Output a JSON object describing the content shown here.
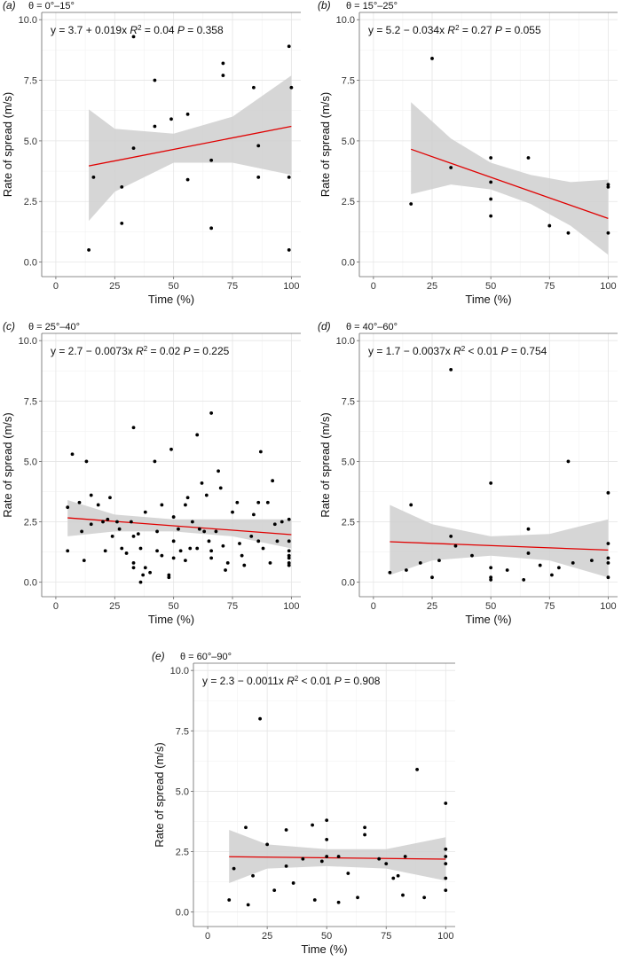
{
  "chart_data": [
    {
      "type": "scatter",
      "panel": "(a)",
      "subtitle": "θ = 0°–15°",
      "equation": "y = 3.7 + 0.019x",
      "r2_label": "R",
      "r2_sup": "2",
      "r2_value": " = 0.04",
      "p_label": "P",
      "p_value": " = 0.358",
      "xlabel": "Time (%)",
      "ylabel": "Rate of spread (m/s)",
      "xlim": [
        -6,
        104
      ],
      "ylim": [
        -0.6,
        10.3
      ],
      "xticks": [
        0,
        25,
        50,
        75,
        100
      ],
      "xtick_labels": [
        "0",
        "25",
        "50",
        "75",
        "100"
      ],
      "yticks": [
        0,
        2.5,
        5,
        7.5,
        10
      ],
      "ytick_labels": [
        "0.0",
        "2.5",
        "5.0",
        "7.5",
        "10.0"
      ],
      "fit": {
        "intercept": 3.7,
        "slope": 0.019,
        "x_range": [
          14,
          100
        ]
      },
      "ci_band": {
        "x": [
          14,
          25,
          50,
          75,
          100
        ],
        "lower": [
          1.7,
          2.9,
          4.1,
          4.1,
          3.6
        ],
        "upper": [
          6.3,
          5.5,
          5.3,
          6.0,
          7.7
        ]
      },
      "points": [
        [
          14,
          0.5
        ],
        [
          16,
          3.5
        ],
        [
          28,
          3.1
        ],
        [
          28,
          1.6
        ],
        [
          33,
          9.3
        ],
        [
          33,
          4.7
        ],
        [
          42,
          7.5
        ],
        [
          42,
          5.6
        ],
        [
          49,
          5.9
        ],
        [
          56,
          6.1
        ],
        [
          56,
          3.4
        ],
        [
          66,
          4.2
        ],
        [
          66,
          1.4
        ],
        [
          71,
          8.2
        ],
        [
          71,
          7.7
        ],
        [
          84,
          7.2
        ],
        [
          86,
          4.8
        ],
        [
          86,
          3.5
        ],
        [
          99,
          8.9
        ],
        [
          100,
          7.2
        ],
        [
          99,
          3.5
        ],
        [
          99,
          0.5
        ]
      ]
    },
    {
      "type": "scatter",
      "panel": "(b)",
      "subtitle": "θ = 15°–25°",
      "equation": "y = 5.2 − 0.034x",
      "r2_label": "R",
      "r2_sup": "2",
      "r2_value": " = 0.27",
      "p_label": "P",
      "p_value": " = 0.055",
      "xlabel": "Time (%)",
      "ylabel": "Rate of spread (m/s)",
      "xlim": [
        -6,
        104
      ],
      "ylim": [
        -0.6,
        10.3
      ],
      "xticks": [
        0,
        25,
        50,
        75,
        100
      ],
      "xtick_labels": [
        "0",
        "25",
        "50",
        "75",
        "100"
      ],
      "yticks": [
        0,
        2.5,
        5,
        7.5,
        10
      ],
      "ytick_labels": [
        "0.0",
        "2.5",
        "5.0",
        "7.5",
        "10.0"
      ],
      "fit": {
        "intercept": 5.2,
        "slope": -0.034,
        "x_range": [
          16,
          100
        ]
      },
      "ci_band": {
        "x": [
          16,
          33,
          50,
          67,
          84,
          100
        ],
        "lower": [
          2.8,
          3.2,
          3.0,
          2.4,
          1.5,
          0.3
        ],
        "upper": [
          6.6,
          5.1,
          4.1,
          3.6,
          3.3,
          3.4
        ]
      },
      "points": [
        [
          16,
          2.4
        ],
        [
          25,
          8.4
        ],
        [
          33,
          3.9
        ],
        [
          50,
          4.3
        ],
        [
          50,
          3.3
        ],
        [
          50,
          2.6
        ],
        [
          50,
          1.9
        ],
        [
          66,
          4.3
        ],
        [
          75,
          1.5
        ],
        [
          83,
          1.2
        ],
        [
          100,
          3.2
        ],
        [
          100,
          3.1
        ],
        [
          100,
          1.2
        ]
      ]
    },
    {
      "type": "scatter",
      "panel": "(c)",
      "subtitle": "θ = 25°–40°",
      "equation": "y = 2.7 − 0.0073x",
      "r2_label": "R",
      "r2_sup": "2",
      "r2_value": " = 0.02",
      "p_label": "P",
      "p_value": " = 0.225",
      "xlabel": "Time (%)",
      "ylabel": "Rate of spread (m/s)",
      "xlim": [
        -6,
        104
      ],
      "ylim": [
        -0.6,
        10.3
      ],
      "xticks": [
        0,
        25,
        50,
        75,
        100
      ],
      "xtick_labels": [
        "0",
        "25",
        "50",
        "75",
        "100"
      ],
      "yticks": [
        0,
        2.5,
        5,
        7.5,
        10
      ],
      "ytick_labels": [
        "0.0",
        "2.5",
        "5.0",
        "7.5",
        "10.0"
      ],
      "fit": {
        "intercept": 2.7,
        "slope": -0.0073,
        "x_range": [
          5,
          100
        ]
      },
      "ci_band": {
        "x": [
          5,
          25,
          50,
          75,
          100
        ],
        "lower": [
          1.9,
          2.1,
          2.1,
          1.9,
          1.4
        ],
        "upper": [
          3.4,
          2.8,
          2.6,
          2.6,
          2.6
        ]
      },
      "points": [
        [
          5,
          3.1
        ],
        [
          5,
          1.3
        ],
        [
          7,
          5.3
        ],
        [
          10,
          3.3
        ],
        [
          11,
          2.1
        ],
        [
          12,
          0.9
        ],
        [
          13,
          5.0
        ],
        [
          15,
          3.6
        ],
        [
          15,
          2.4
        ],
        [
          18,
          3.2
        ],
        [
          20,
          2.5
        ],
        [
          21,
          1.3
        ],
        [
          22,
          2.6
        ],
        [
          23,
          3.5
        ],
        [
          24,
          1.9
        ],
        [
          26,
          2.5
        ],
        [
          27,
          2.2
        ],
        [
          28,
          1.4
        ],
        [
          30,
          1.2
        ],
        [
          32,
          2.5
        ],
        [
          33,
          6.4
        ],
        [
          33,
          1.9
        ],
        [
          33,
          0.8
        ],
        [
          33,
          0.6
        ],
        [
          35,
          2.0
        ],
        [
          36,
          0.0
        ],
        [
          36,
          1.4
        ],
        [
          37,
          0.3
        ],
        [
          38,
          2.9
        ],
        [
          38,
          0.6
        ],
        [
          40,
          0.4
        ],
        [
          42,
          5.0
        ],
        [
          43,
          2.1
        ],
        [
          43,
          1.3
        ],
        [
          45,
          3.2
        ],
        [
          45,
          1.1
        ],
        [
          48,
          0.3
        ],
        [
          48,
          0.2
        ],
        [
          49,
          5.5
        ],
        [
          50,
          2.7
        ],
        [
          50,
          1.7
        ],
        [
          50,
          1.0
        ],
        [
          52,
          2.2
        ],
        [
          53,
          1.3
        ],
        [
          55,
          3.2
        ],
        [
          55,
          0.9
        ],
        [
          56,
          3.5
        ],
        [
          57,
          1.4
        ],
        [
          58,
          2.5
        ],
        [
          60,
          6.1
        ],
        [
          60,
          1.4
        ],
        [
          61,
          2.2
        ],
        [
          62,
          4.1
        ],
        [
          63,
          2.1
        ],
        [
          64,
          3.6
        ],
        [
          65,
          1.7
        ],
        [
          66,
          7.0
        ],
        [
          66,
          1.3
        ],
        [
          66,
          1.0
        ],
        [
          68,
          2.1
        ],
        [
          69,
          4.6
        ],
        [
          70,
          3.9
        ],
        [
          71,
          1.5
        ],
        [
          72,
          0.5
        ],
        [
          73,
          0.8
        ],
        [
          75,
          2.9
        ],
        [
          77,
          3.3
        ],
        [
          78,
          1.6
        ],
        [
          79,
          1.1
        ],
        [
          80,
          0.7
        ],
        [
          83,
          1.9
        ],
        [
          84,
          2.8
        ],
        [
          86,
          3.3
        ],
        [
          86,
          1.7
        ],
        [
          87,
          5.4
        ],
        [
          88,
          1.4
        ],
        [
          90,
          3.3
        ],
        [
          91,
          0.8
        ],
        [
          92,
          4.2
        ],
        [
          93,
          2.4
        ],
        [
          94,
          1.7
        ],
        [
          96,
          2.5
        ],
        [
          99,
          2.6
        ],
        [
          99,
          1.7
        ],
        [
          99,
          1.3
        ],
        [
          99,
          1.1
        ],
        [
          99,
          1.0
        ],
        [
          99,
          0.8
        ],
        [
          99,
          0.7
        ]
      ]
    },
    {
      "type": "scatter",
      "panel": "(d)",
      "subtitle": "θ = 40°–60°",
      "equation": "y = 1.7 − 0.0037x",
      "r2_label": "R",
      "r2_sup": "2",
      "r2_value": " < 0.01",
      "p_label": "P",
      "p_value": " = 0.754",
      "xlabel": "Time (%)",
      "ylabel": "Rate of spread (m/s)",
      "xlim": [
        -6,
        104
      ],
      "ylim": [
        -0.6,
        10.3
      ],
      "xticks": [
        0,
        25,
        50,
        75,
        100
      ],
      "xtick_labels": [
        "0",
        "25",
        "50",
        "75",
        "100"
      ],
      "yticks": [
        0,
        2.5,
        5,
        7.5,
        10
      ],
      "ytick_labels": [
        "0.0",
        "2.5",
        "5.0",
        "7.5",
        "10.0"
      ],
      "fit": {
        "intercept": 1.7,
        "slope": -0.0037,
        "x_range": [
          7,
          100
        ]
      },
      "ci_band": {
        "x": [
          7,
          25,
          50,
          75,
          100
        ],
        "lower": [
          0.3,
          0.9,
          1.1,
          0.9,
          0.2
        ],
        "upper": [
          3.2,
          2.4,
          1.9,
          2.0,
          2.6
        ]
      },
      "points": [
        [
          7,
          0.4
        ],
        [
          14,
          0.5
        ],
        [
          16,
          3.2
        ],
        [
          20,
          0.8
        ],
        [
          25,
          0.2
        ],
        [
          28,
          0.9
        ],
        [
          33,
          8.8
        ],
        [
          33,
          1.9
        ],
        [
          35,
          1.5
        ],
        [
          42,
          1.1
        ],
        [
          50,
          4.1
        ],
        [
          50,
          0.6
        ],
        [
          50,
          0.2
        ],
        [
          50,
          0.1
        ],
        [
          57,
          0.5
        ],
        [
          64,
          0.1
        ],
        [
          66,
          2.2
        ],
        [
          66,
          1.2
        ],
        [
          71,
          0.7
        ],
        [
          76,
          0.3
        ],
        [
          79,
          0.6
        ],
        [
          83,
          5.0
        ],
        [
          85,
          0.8
        ],
        [
          93,
          0.9
        ],
        [
          100,
          3.7
        ],
        [
          100,
          1.6
        ],
        [
          100,
          1.0
        ],
        [
          100,
          0.8
        ],
        [
          100,
          0.2
        ]
      ]
    },
    {
      "type": "scatter",
      "panel": "(e)",
      "subtitle": "θ = 60°–90°",
      "equation": "y = 2.3 − 0.0011x",
      "r2_label": "R",
      "r2_sup": "2",
      "r2_value": " < 0.01",
      "p_label": "P",
      "p_value": " = 0.908",
      "xlabel": "Time (%)",
      "ylabel": "Rate of spread (m/s)",
      "xlim": [
        -6,
        104
      ],
      "ylim": [
        -0.6,
        10.3
      ],
      "xticks": [
        0,
        25,
        50,
        75,
        100
      ],
      "xtick_labels": [
        "0",
        "25",
        "50",
        "75",
        "100"
      ],
      "yticks": [
        0,
        2.5,
        5,
        7.5,
        10
      ],
      "ytick_labels": [
        "0.0",
        "2.5",
        "5.0",
        "7.5",
        "10.0"
      ],
      "fit": {
        "intercept": 2.3,
        "slope": -0.0011,
        "x_range": [
          9,
          100
        ]
      },
      "ci_band": {
        "x": [
          9,
          25,
          50,
          75,
          100
        ],
        "lower": [
          1.2,
          1.8,
          1.9,
          1.8,
          1.3
        ],
        "upper": [
          3.4,
          2.8,
          2.6,
          2.6,
          3.1
        ]
      },
      "points": [
        [
          9,
          0.5
        ],
        [
          11,
          1.8
        ],
        [
          16,
          3.5
        ],
        [
          17,
          0.3
        ],
        [
          19,
          1.5
        ],
        [
          22,
          8.0
        ],
        [
          25,
          2.8
        ],
        [
          28,
          0.9
        ],
        [
          33,
          3.4
        ],
        [
          33,
          1.9
        ],
        [
          36,
          1.2
        ],
        [
          40,
          2.2
        ],
        [
          44,
          3.6
        ],
        [
          45,
          0.5
        ],
        [
          48,
          2.1
        ],
        [
          50,
          3.8
        ],
        [
          50,
          3.0
        ],
        [
          50,
          2.3
        ],
        [
          55,
          0.4
        ],
        [
          55,
          2.3
        ],
        [
          59,
          1.6
        ],
        [
          63,
          0.6
        ],
        [
          66,
          3.5
        ],
        [
          66,
          3.2
        ],
        [
          72,
          2.2
        ],
        [
          75,
          2.0
        ],
        [
          78,
          1.4
        ],
        [
          80,
          1.5
        ],
        [
          82,
          0.7
        ],
        [
          83,
          2.3
        ],
        [
          88,
          5.9
        ],
        [
          91,
          0.6
        ],
        [
          100,
          4.5
        ],
        [
          100,
          2.6
        ],
        [
          100,
          2.3
        ],
        [
          100,
          2.0
        ],
        [
          100,
          1.4
        ],
        [
          100,
          0.9
        ]
      ]
    }
  ]
}
